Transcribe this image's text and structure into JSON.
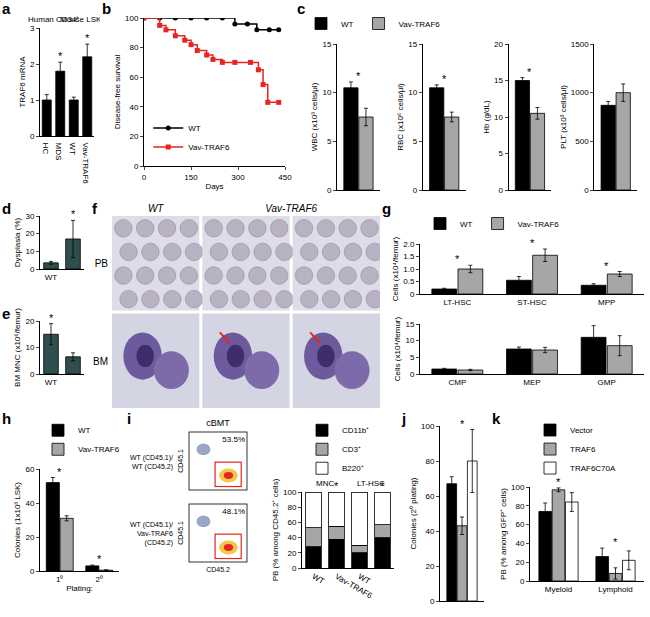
{
  "chart_data": [
    {
      "panel": "a",
      "type": "bar",
      "y_label": "TRAF6 mRNA",
      "ylim": [
        0,
        3
      ],
      "yticks": [
        0,
        1,
        2,
        3
      ],
      "groups": [
        {
          "label": "Human CD34⁺",
          "categories": [
            "HC",
            "MDS"
          ]
        },
        {
          "label": "Mouse LSK",
          "categories": [
            "WT",
            "Vav-TRAF6"
          ]
        }
      ],
      "series": [
        {
          "color": "#000000",
          "values": [
            1.0,
            1.8,
            1.0,
            2.2
          ],
          "errors": [
            0.15,
            0.25,
            0.08,
            0.35
          ]
        }
      ],
      "significance": [
        null,
        "*",
        null,
        "*"
      ]
    },
    {
      "panel": "b",
      "type": "line",
      "y_label": "Disease-free survival",
      "x_label": "Days",
      "xlim": [
        0,
        450
      ],
      "xticks": [
        0,
        150,
        300,
        450
      ],
      "ylim": [
        0,
        100
      ],
      "yticks": [
        0,
        20,
        40,
        60,
        80,
        100
      ],
      "legend": "bottom left",
      "series": [
        {
          "name": "WT",
          "color": "#000000",
          "marker": "circle",
          "x": [
            0,
            50,
            100,
            150,
            200,
            250,
            290,
            330,
            360,
            400,
            430
          ],
          "values": [
            100,
            100,
            100,
            100,
            100,
            100,
            96,
            96,
            92,
            92,
            92
          ]
        },
        {
          "name": "Vav-TRAF6",
          "color": "#e8251f",
          "marker": "square",
          "x": [
            0,
            50,
            70,
            100,
            130,
            150,
            170,
            200,
            220,
            250,
            290,
            340,
            365,
            380,
            395,
            430
          ],
          "values": [
            100,
            95,
            92,
            88,
            85,
            82,
            78,
            75,
            72,
            70,
            70,
            70,
            65,
            55,
            43,
            43
          ]
        }
      ]
    },
    {
      "panel": "c",
      "type": "bar",
      "legend": "top",
      "tick_labels": "y",
      "subplots": [
        {
          "y_label": "WBC (x10³ cells/μl)",
          "categories": [
            null
          ],
          "ylim": [
            0,
            15
          ],
          "yticks": [
            0,
            5,
            10,
            15
          ],
          "series": [
            {
              "name": "WT",
              "color": "#000000",
              "values": [
                10.5
              ],
              "errors": [
                0.6
              ]
            },
            {
              "name": "Vav-TRAF6",
              "color": "#a6a6a6",
              "values": [
                7.5
              ],
              "errors": [
                0.9
              ]
            }
          ],
          "significance": [
            "*"
          ]
        },
        {
          "y_label": "RBC (x10⁶ cells/μl)",
          "categories": [
            null
          ],
          "ylim": [
            0,
            15
          ],
          "yticks": [
            0,
            5,
            10,
            15
          ],
          "series": [
            {
              "name": "WT",
              "color": "#000000",
              "values": [
                10.5
              ],
              "errors": [
                0.3
              ]
            },
            {
              "name": "Vav-TRAF6",
              "color": "#a6a6a6",
              "values": [
                7.5
              ],
              "errors": [
                0.5
              ]
            }
          ],
          "significance": [
            "*"
          ]
        },
        {
          "y_label": "Hb (g/dL)",
          "categories": [
            null
          ],
          "ylim": [
            0,
            20
          ],
          "yticks": [
            0,
            5,
            10,
            15,
            20
          ],
          "series": [
            {
              "name": "WT",
              "color": "#000000",
              "values": [
                15
              ],
              "errors": [
                0.4
              ]
            },
            {
              "name": "Vav-TRAF6",
              "color": "#a6a6a6",
              "values": [
                10.5
              ],
              "errors": [
                0.8
              ]
            }
          ],
          "significance": [
            "*"
          ]
        },
        {
          "y_label": "PLT (x10³ cells/μl)",
          "categories": [
            null
          ],
          "ylim": [
            0,
            1500
          ],
          "yticks": [
            0,
            500,
            1000,
            1500
          ],
          "series": [
            {
              "name": "WT",
              "color": "#000000",
              "values": [
                870
              ],
              "errors": [
                40
              ]
            },
            {
              "name": "Vav-TRAF6",
              "color": "#a6a6a6",
              "values": [
                1000
              ],
              "errors": [
                90
              ]
            }
          ],
          "significance": [
            null
          ]
        }
      ]
    },
    {
      "panel": "d",
      "type": "bar",
      "y_label": "Dysplasia (%)",
      "categories": [
        "WT",
        "Vav-TRAF6"
      ],
      "ylim": [
        0,
        30
      ],
      "yticks": [
        0,
        10,
        20,
        30
      ],
      "series": [
        {
          "color": "#2f4f4f",
          "values": [
            3.5,
            17
          ],
          "errors": [
            0.8,
            10.5
          ]
        }
      ],
      "significance": [
        null,
        "*"
      ]
    },
    {
      "panel": "e",
      "type": "bar",
      "y_label": "BM MNC (x10⁶/femur)",
      "categories": [
        "WT",
        "Vav-TRAF6"
      ],
      "ylim": [
        0,
        20
      ],
      "yticks": [
        0,
        10,
        20
      ],
      "series": [
        {
          "color": "#2f4f4f",
          "values": [
            15,
            6.5
          ],
          "errors": [
            4,
            1.5
          ]
        }
      ],
      "significance": [
        "*",
        null
      ]
    },
    {
      "panel": "g",
      "type": "bar",
      "legend": "top",
      "subplots": [
        {
          "y_label": "Cells (x10⁴/femur)",
          "categories": [
            "LT-HSC",
            "ST-HSC",
            "MPP"
          ],
          "ylim": [
            0,
            2
          ],
          "yticks": [
            0,
            0.5,
            {
              "value": 1,
              "label": "1.0"
            },
            1.5,
            {
              "value": 2,
              "label": "2.0"
            }
          ],
          "series": [
            {
              "name": "WT",
              "color": "#000000",
              "values": [
                0.2,
                0.55,
                0.35
              ],
              "errors": [
                0.03,
                0.15,
                0.06
              ]
            },
            {
              "name": "Vav-TRAF6",
              "color": "#a6a6a6",
              "values": [
                1.0,
                1.55,
                0.8
              ],
              "errors": [
                0.15,
                0.25,
                0.1
              ]
            }
          ],
          "significance": [
            "*",
            "*",
            "*"
          ]
        },
        {
          "y_label": "Cells (x10⁴/femur)",
          "categories": [
            "CMP",
            "MEP",
            "GMP"
          ],
          "ylim": [
            0,
            15
          ],
          "yticks": [
            0,
            5,
            10,
            15
          ],
          "series": [
            {
              "name": "WT",
              "color": "#000000",
              "values": [
                1.5,
                7.5,
                11
              ],
              "errors": [
                0.2,
                0.6,
                3.5
              ]
            },
            {
              "name": "Vav-TRAF6",
              "color": "#a6a6a6",
              "values": [
                1.2,
                7.2,
                8.5
              ],
              "errors": [
                0.2,
                0.8,
                3
              ]
            }
          ],
          "significance": [
            null,
            null,
            null
          ]
        }
      ]
    },
    {
      "panel": "h",
      "type": "bar",
      "legend": "top",
      "y_label": "Colonies (1x10³ LSK)",
      "x_label": "Plating:",
      "categories": [
        "1⁰",
        "2⁰"
      ],
      "ylim": [
        0,
        60
      ],
      "yticks": [
        0,
        20,
        40,
        60
      ],
      "series": [
        {
          "name": "WT",
          "color": "#000000",
          "values": [
            52,
            3
          ],
          "errors": [
            3,
            0.5
          ]
        },
        {
          "name": "Vav-TRAF6",
          "color": "#a6a6a6",
          "values": [
            31,
            0.5
          ],
          "errors": [
            1.5,
            0.2
          ]
        }
      ],
      "significance": [
        "*",
        "*"
      ]
    },
    {
      "type": "bar",
      "stacked": true,
      "legend": "top",
      "y_label": "PB (% among CD45.2⁺ cells)",
      "ylim": [
        0,
        100
      ],
      "yticks": [
        0,
        20,
        40,
        60,
        80,
        100
      ],
      "groups": [
        {
          "label": "MNC",
          "categories": [
            "WT",
            "Vav-TRAF6"
          ]
        },
        {
          "label": "LT-HSC",
          "categories": [
            "WT",
            "Vav-TRAF6"
          ]
        }
      ],
      "series": [
        {
          "name": "CD11b⁺",
          "color": "#000000",
          "values": [
            28,
            38,
            20,
            40
          ]
        },
        {
          "name": "CD3⁺",
          "color": "#a6a6a6",
          "values": [
            25,
            17,
            10,
            17
          ]
        },
        {
          "name": "B220⁺",
          "color": "#ffffff",
          "values": [
            47,
            45,
            70,
            43
          ]
        }
      ],
      "significance": [
        null,
        "*",
        null,
        "*"
      ]
    },
    {
      "panel": "j",
      "type": "bar",
      "tick_labels": "y",
      "y_label": "Colonies (2⁰ plating)",
      "categories": [
        null
      ],
      "ylim": [
        0,
        100
      ],
      "yticks": [
        0,
        20,
        40,
        60,
        80,
        100
      ],
      "series": [
        {
          "color": "#000000",
          "values": [
            67
          ],
          "errors": [
            4
          ]
        },
        {
          "color": "#a6a6a6",
          "values": [
            43
          ],
          "errors": [
            5
          ]
        },
        {
          "color": "#ffffff",
          "values": [
            80
          ],
          "errors": [
            18
          ]
        }
      ],
      "significance": [
        "*"
      ]
    },
    {
      "panel": "k",
      "type": "bar",
      "legend": "top",
      "y_label": "PB (% among GFP⁺ cells)",
      "categories": [
        "Myeloid",
        "Lymphoid"
      ],
      "ylim": [
        0,
        100
      ],
      "yticks": [
        0,
        20,
        40,
        60,
        80,
        100
      ],
      "series": [
        {
          "name": "Vector",
          "color": "#000000",
          "values": [
            74,
            26
          ],
          "errors": [
            9,
            9
          ]
        },
        {
          "name": "TRAF6",
          "color": "#a6a6a6",
          "values": [
            97,
            8
          ],
          "errors": [
            2,
            6
          ]
        },
        {
          "name": "TRAF6C70A",
          "color": "#ffffff",
          "values": [
            84,
            22
          ],
          "errors": [
            10,
            10
          ]
        }
      ],
      "significance": [
        "*",
        "*"
      ]
    }
  ],
  "micrographs": {
    "panel": "f",
    "columns": [
      "WT",
      "Vav-TRAF6"
    ],
    "rows": [
      "PB",
      "BM"
    ]
  },
  "flow_plot": {
    "panel": "i",
    "title": "cBMT",
    "x_label": "CD45.2",
    "y_label": "CD45.1",
    "rows": [
      {
        "label": "WT (CD45.1)/ WT (CD45.2)",
        "gate_label": "53.5%"
      },
      {
        "label": "WT (CD45.1)/ Vav-TRAF6 (CD45.2)",
        "gate_label": "48.1%"
      }
    ]
  }
}
